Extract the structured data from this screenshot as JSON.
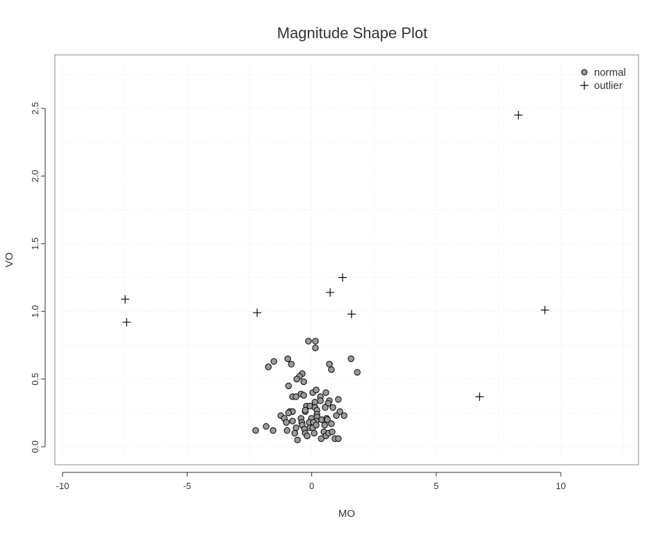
{
  "chart_data": {
    "type": "scatter",
    "title": "Magnitude Shape Plot",
    "xlabel": "MO",
    "ylabel": "VO",
    "xlim": [
      -10.31,
      13.12
    ],
    "ylim": [
      -0.133,
      2.895
    ],
    "xticks": [
      -10,
      -5,
      0,
      5,
      10
    ],
    "xtick_labels": [
      "-10",
      "-5",
      "0",
      "5",
      "10"
    ],
    "yticks": [
      0.0,
      0.5,
      1.0,
      1.5,
      2.0,
      2.5
    ],
    "ytick_labels": [
      "0.0",
      "0.5",
      "1.0",
      "1.5",
      "2.0",
      "2.5"
    ],
    "grid": true,
    "legend_position": "top-right",
    "series": [
      {
        "name": "normal",
        "marker": "circle",
        "color": "#999999",
        "points": [
          [
            -0.13,
            0.78
          ],
          [
            0.15,
            0.78
          ],
          [
            0.15,
            0.73
          ],
          [
            -0.96,
            0.65
          ],
          [
            -1.52,
            0.63
          ],
          [
            -1.74,
            0.59
          ],
          [
            -0.82,
            0.61
          ],
          [
            0.71,
            0.61
          ],
          [
            0.79,
            0.57
          ],
          [
            1.58,
            0.65
          ],
          [
            1.83,
            0.55
          ],
          [
            -0.38,
            0.54
          ],
          [
            -0.49,
            0.52
          ],
          [
            -0.6,
            0.5
          ],
          [
            -0.32,
            0.48
          ],
          [
            -0.93,
            0.45
          ],
          [
            0.04,
            0.4
          ],
          [
            0.18,
            0.42
          ],
          [
            0.57,
            0.4
          ],
          [
            -0.77,
            0.37
          ],
          [
            -0.63,
            0.37
          ],
          [
            -0.43,
            0.39
          ],
          [
            -0.32,
            0.38
          ],
          [
            0.35,
            0.37
          ],
          [
            0.35,
            0.34
          ],
          [
            0.71,
            0.34
          ],
          [
            0.66,
            0.32
          ],
          [
            1.07,
            0.35
          ],
          [
            0.13,
            0.33
          ],
          [
            -0.21,
            0.3
          ],
          [
            -0.07,
            0.3
          ],
          [
            0.13,
            0.29
          ],
          [
            0.21,
            0.27
          ],
          [
            0.54,
            0.29
          ],
          [
            0.85,
            0.29
          ],
          [
            -0.88,
            0.26
          ],
          [
            -0.77,
            0.26
          ],
          [
            -0.93,
            0.25
          ],
          [
            -0.26,
            0.26
          ],
          [
            -0.26,
            0.27
          ],
          [
            1.13,
            0.26
          ],
          [
            0.99,
            0.23
          ],
          [
            1.3,
            0.23
          ],
          [
            -1.24,
            0.23
          ],
          [
            -1.1,
            0.21
          ],
          [
            -1.02,
            0.18
          ],
          [
            -0.77,
            0.19
          ],
          [
            -0.43,
            0.21
          ],
          [
            -0.4,
            0.18
          ],
          [
            -0.38,
            0.16
          ],
          [
            -0.01,
            0.21
          ],
          [
            0.21,
            0.24
          ],
          [
            0.21,
            0.22
          ],
          [
            0.18,
            0.19
          ],
          [
            -0.1,
            0.18
          ],
          [
            0.07,
            0.18
          ],
          [
            0.4,
            0.2
          ],
          [
            0.6,
            0.21
          ],
          [
            0.63,
            0.2
          ],
          [
            0.79,
            0.17
          ],
          [
            0.52,
            0.16
          ],
          [
            -2.25,
            0.12
          ],
          [
            -1.83,
            0.15
          ],
          [
            -1.55,
            0.12
          ],
          [
            -0.99,
            0.12
          ],
          [
            -0.63,
            0.14
          ],
          [
            -0.68,
            0.1
          ],
          [
            -0.57,
            0.05
          ],
          [
            -0.29,
            0.13
          ],
          [
            -0.26,
            0.1
          ],
          [
            -0.18,
            0.08
          ],
          [
            -0.07,
            0.14
          ],
          [
            0.04,
            0.14
          ],
          [
            0.18,
            0.16
          ],
          [
            0.1,
            0.1
          ],
          [
            0.49,
            0.11
          ],
          [
            0.57,
            0.08
          ],
          [
            0.68,
            0.1
          ],
          [
            0.82,
            0.11
          ],
          [
            0.38,
            0.06
          ],
          [
            0.93,
            0.06
          ],
          [
            1.07,
            0.06
          ]
        ]
      },
      {
        "name": "outlier",
        "marker": "plus",
        "color": "#000000",
        "points": [
          [
            -7.49,
            1.09
          ],
          [
            -7.43,
            0.92
          ],
          [
            -2.19,
            0.99
          ],
          [
            0.74,
            1.14
          ],
          [
            1.24,
            1.25
          ],
          [
            1.6,
            0.98
          ],
          [
            6.74,
            0.37
          ],
          [
            8.3,
            2.45
          ],
          [
            9.36,
            1.01
          ]
        ]
      }
    ]
  }
}
